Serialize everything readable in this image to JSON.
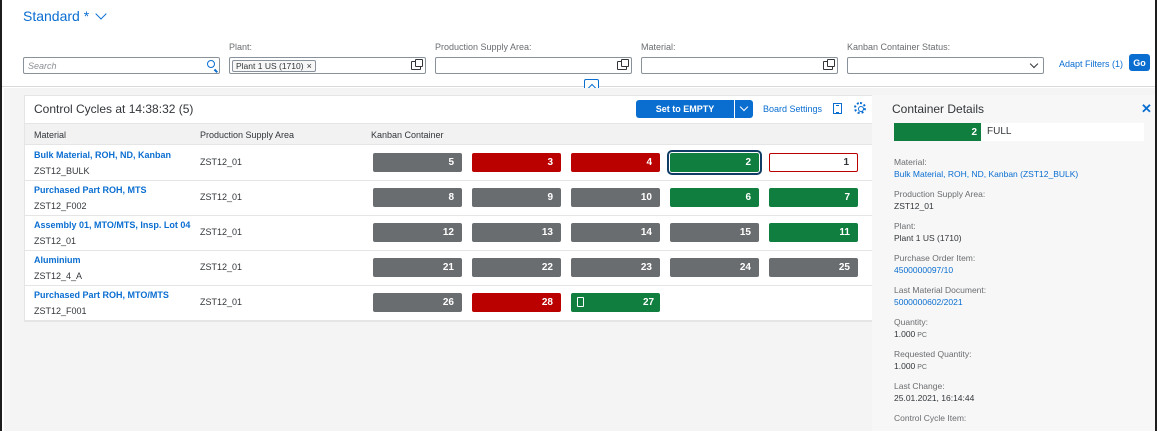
{
  "variant": {
    "title": "Standard *"
  },
  "filters": {
    "search_placeholder": "Search",
    "plant_label": "Plant:",
    "plant_token": "Plant 1 US (1710)",
    "psa_label": "Production Supply Area:",
    "material_label": "Material:",
    "status_label": "Kanban Container Status:",
    "adapt_filters": "Adapt Filters (1)",
    "go": "Go"
  },
  "board": {
    "title": "Control Cycles at 14:38:32 (5)",
    "set_empty": "Set to EMPTY",
    "board_settings": "Board Settings",
    "columns": {
      "material": "Material",
      "psa": "Production Supply Area",
      "container": "Kanban Container"
    },
    "rows": [
      {
        "name": "Bulk Material, ROH, ND, Kanban",
        "code": "ZST12_BULK",
        "psa": "ZST12_01",
        "bins": [
          {
            "n": "5",
            "s": "gray"
          },
          {
            "n": "3",
            "s": "red"
          },
          {
            "n": "4",
            "s": "red"
          },
          {
            "n": "2",
            "s": "green-selected"
          },
          {
            "n": "1",
            "s": "outline"
          }
        ]
      },
      {
        "name": "Purchased Part ROH, MTS",
        "code": "ZST12_F002",
        "psa": "ZST12_01",
        "bins": [
          {
            "n": "8",
            "s": "gray"
          },
          {
            "n": "9",
            "s": "gray"
          },
          {
            "n": "10",
            "s": "gray"
          },
          {
            "n": "6",
            "s": "green"
          },
          {
            "n": "7",
            "s": "green"
          }
        ]
      },
      {
        "name": "Assembly 01, MTO/MTS, Insp. Lot 04",
        "code": "ZST12_01",
        "psa": "ZST12_01",
        "bins": [
          {
            "n": "12",
            "s": "gray"
          },
          {
            "n": "13",
            "s": "gray"
          },
          {
            "n": "14",
            "s": "gray"
          },
          {
            "n": "15",
            "s": "gray"
          },
          {
            "n": "11",
            "s": "green"
          }
        ]
      },
      {
        "name": "Aluminium",
        "code": "ZST12_4_A",
        "psa": "ZST12_01",
        "bins": [
          {
            "n": "21",
            "s": "gray"
          },
          {
            "n": "22",
            "s": "gray"
          },
          {
            "n": "23",
            "s": "gray"
          },
          {
            "n": "24",
            "s": "gray"
          },
          {
            "n": "25",
            "s": "gray"
          }
        ]
      },
      {
        "name": "Purchased Part ROH, MTO/MTS",
        "code": "ZST12_F001",
        "psa": "ZST12_01",
        "bins": [
          {
            "n": "26",
            "s": "gray"
          },
          {
            "n": "28",
            "s": "red"
          },
          {
            "n": "27",
            "s": "green-doc"
          }
        ]
      }
    ]
  },
  "details": {
    "title": "Container Details",
    "status_count": "2",
    "status_text": "FULL",
    "fields": [
      {
        "label": "Material:",
        "value": "Bulk Material, ROH, ND, Kanban (ZST12_BULK)",
        "link": true
      },
      {
        "label": "Production Supply Area:",
        "value": "ZST12_01",
        "link": false
      },
      {
        "label": "Plant:",
        "value": "Plant 1 US (1710)",
        "link": false
      },
      {
        "label": "Purchase Order Item:",
        "value": "4500000097/10",
        "link": true
      },
      {
        "label": "Last Material Document:",
        "value": "5000000602/2021",
        "link": true
      },
      {
        "label": "Quantity:",
        "value": "1.000",
        "unit": "PC",
        "link": false
      },
      {
        "label": "Requested Quantity:",
        "value": "1.000",
        "unit": "PC",
        "link": false
      },
      {
        "label": "Last Change:",
        "value": "25.01.2021, 16:14:44",
        "link": false
      },
      {
        "label": "Control Cycle Item:",
        "value": "",
        "link": false
      }
    ]
  }
}
